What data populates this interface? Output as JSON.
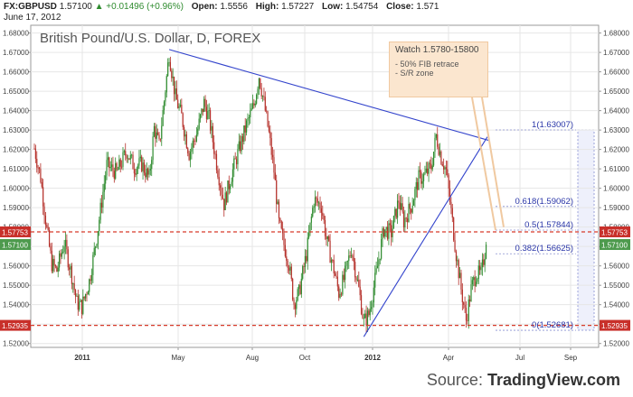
{
  "header": {
    "symbol": "FX:GBPUSD",
    "last": "1.57100",
    "change": "▲ +0.01496 (+0.96%)",
    "open_label": "Open:",
    "open": "1.5556",
    "high_label": "High:",
    "high": "1.57227",
    "low_label": "Low:",
    "low": "1.54754",
    "close_label": "Close:",
    "close": "1.571",
    "date": "June 17, 2012"
  },
  "chart_title": "British Pound/U.S. Dollar, D, FOREX",
  "annotation": {
    "title": "Watch 1.5780-15800",
    "line1": "- 50% FIB retrace",
    "line2": "- S/R zone"
  },
  "source": {
    "prefix": "Source: ",
    "brand": "TradingView.com"
  },
  "colors": {
    "up": "#2e8b2e",
    "down": "#b5302a",
    "trend": "#3344cc",
    "hline": "#d63a2a",
    "label_red": "#c8302a",
    "label_green": "#4d9a4d"
  },
  "chart_data": {
    "type": "candlestick",
    "x_ticks": [
      "2011",
      "May",
      "Aug",
      "Oct",
      "2012",
      "Apr",
      "Jul",
      "Sep"
    ],
    "y_ticks": [
      "1.68000",
      "1.67000",
      "1.66000",
      "1.65000",
      "1.64000",
      "1.63000",
      "1.62000",
      "1.61000",
      "1.60000",
      "1.59000",
      "1.58000",
      "1.57000",
      "1.56000",
      "1.55000",
      "1.54000",
      "1.53000",
      "1.52000"
    ],
    "ylim": [
      1.518,
      1.684
    ],
    "price_labels": [
      {
        "value": 1.57753,
        "text": "1.57753",
        "color": "red"
      },
      {
        "value": 1.571,
        "text": "1.57100",
        "color": "green"
      },
      {
        "value": 1.52935,
        "text": "1.52935",
        "color": "red"
      }
    ],
    "fib_levels": [
      {
        "value": 1.63007,
        "text": "1(1.63007)"
      },
      {
        "value": 1.59062,
        "text": "0.618(1.59062)"
      },
      {
        "value": 1.57844,
        "text": "0.5(1.57844)"
      },
      {
        "value": 1.56625,
        "text": "0.382(1.56625)"
      },
      {
        "value": 1.52681,
        "text": "0(1.52681)"
      }
    ],
    "horizontal_lines": [
      1.57753,
      1.52935
    ],
    "trendlines": [
      {
        "from": {
          "bar": 108,
          "price": 1.6715
        },
        "to": {
          "bar": 365,
          "price": 1.6245
        }
      },
      {
        "from": {
          "bar": 264,
          "price": 1.5235
        },
        "to": {
          "bar": 363,
          "price": 1.6265
        }
      }
    ],
    "price_path": [
      [
        0,
        1.6205
      ],
      [
        5,
        1.6055
      ],
      [
        10,
        1.5785
      ],
      [
        14,
        1.561
      ],
      [
        18,
        1.5575
      ],
      [
        24,
        1.572
      ],
      [
        30,
        1.555
      ],
      [
        34,
        1.541
      ],
      [
        38,
        1.539
      ],
      [
        44,
        1.552
      ],
      [
        50,
        1.575
      ],
      [
        58,
        1.612
      ],
      [
        66,
        1.608
      ],
      [
        74,
        1.619
      ],
      [
        80,
        1.611
      ],
      [
        86,
        1.6125
      ],
      [
        92,
        1.605
      ],
      [
        96,
        1.631
      ],
      [
        100,
        1.622
      ],
      [
        104,
        1.645
      ],
      [
        108,
        1.6695
      ],
      [
        113,
        1.647
      ],
      [
        118,
        1.637
      ],
      [
        124,
        1.618
      ],
      [
        130,
        1.628
      ],
      [
        136,
        1.644
      ],
      [
        140,
        1.636
      ],
      [
        146,
        1.613
      ],
      [
        152,
        1.592
      ],
      [
        158,
        1.607
      ],
      [
        164,
        1.62
      ],
      [
        170,
        1.6325
      ],
      [
        176,
        1.643
      ],
      [
        180,
        1.658
      ],
      [
        184,
        1.644
      ],
      [
        188,
        1.628
      ],
      [
        192,
        1.609
      ],
      [
        196,
        1.582
      ],
      [
        200,
        1.571
      ],
      [
        204,
        1.561
      ],
      [
        208,
        1.541
      ],
      [
        212,
        1.546
      ],
      [
        218,
        1.566
      ],
      [
        224,
        1.594
      ],
      [
        230,
        1.591
      ],
      [
        234,
        1.574
      ],
      [
        240,
        1.558
      ],
      [
        244,
        1.546
      ],
      [
        248,
        1.553
      ],
      [
        254,
        1.569
      ],
      [
        260,
        1.548
      ],
      [
        264,
        1.531
      ],
      [
        268,
        1.535
      ],
      [
        274,
        1.556
      ],
      [
        280,
        1.579
      ],
      [
        286,
        1.577
      ],
      [
        292,
        1.594
      ],
      [
        296,
        1.583
      ],
      [
        302,
        1.591
      ],
      [
        308,
        1.605
      ],
      [
        312,
        1.606
      ],
      [
        318,
        1.611
      ],
      [
        322,
        1.627
      ],
      [
        326,
        1.616
      ],
      [
        330,
        1.609
      ],
      [
        334,
        1.588
      ],
      [
        338,
        1.566
      ],
      [
        342,
        1.548
      ],
      [
        346,
        1.532
      ],
      [
        350,
        1.548
      ],
      [
        354,
        1.556
      ],
      [
        358,
        1.5555
      ],
      [
        362,
        1.571
      ]
    ]
  }
}
